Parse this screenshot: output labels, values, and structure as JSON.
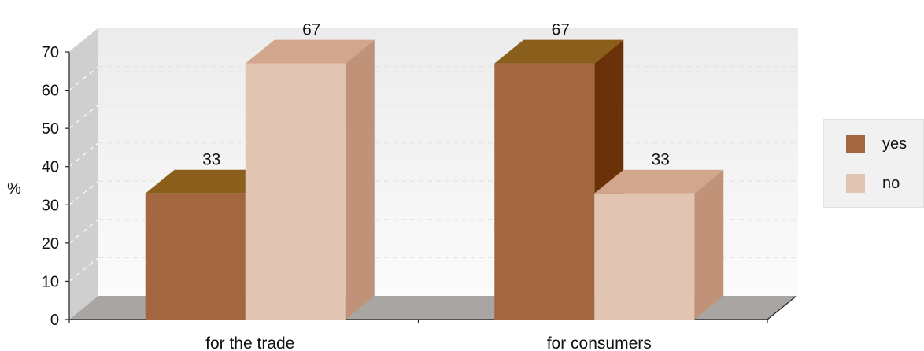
{
  "chart_data": {
    "type": "bar",
    "categories": [
      "for the trade",
      "for consumers"
    ],
    "series": [
      {
        "name": "yes",
        "values": [
          33,
          67
        ],
        "color": "#a26741",
        "top_color": "#8a5e1b",
        "side_color": "#6b3209"
      },
      {
        "name": "no",
        "values": [
          67,
          33
        ],
        "color": "#e1c4b2",
        "top_color": "#d2a68d",
        "side_color": "#c09277"
      }
    ],
    "ylabel": "%",
    "ylim": [
      0,
      70
    ],
    "yticks": [
      0,
      10,
      20,
      30,
      40,
      50,
      60,
      70
    ],
    "grid": true,
    "legend_position": "right",
    "three_d": true
  }
}
